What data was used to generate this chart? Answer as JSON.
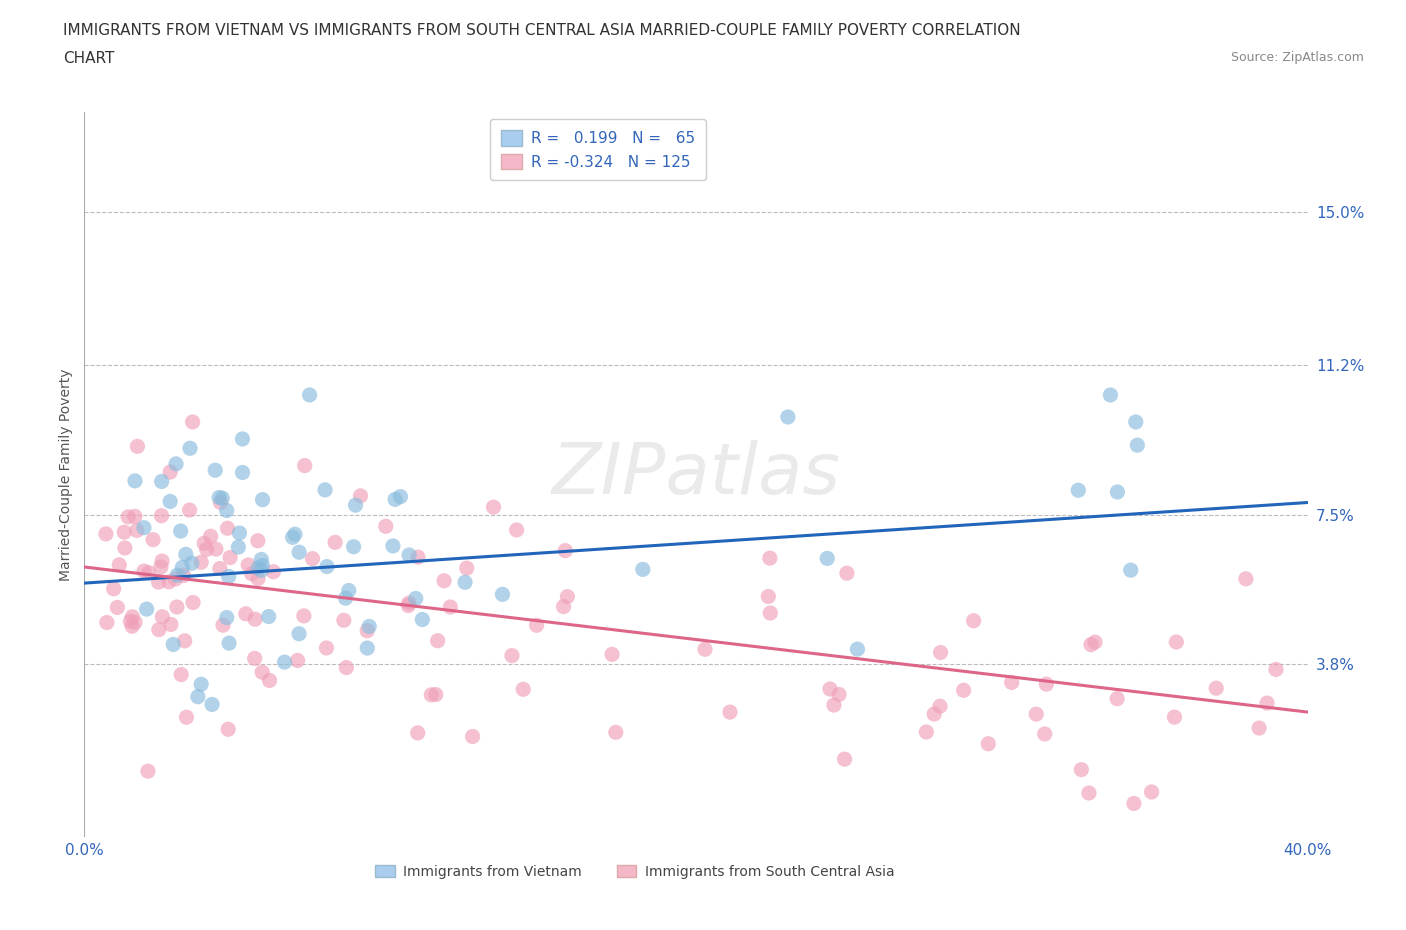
{
  "title_line1": "IMMIGRANTS FROM VIETNAM VS IMMIGRANTS FROM SOUTH CENTRAL ASIA MARRIED-COUPLE FAMILY POVERTY CORRELATION",
  "title_line2": "CHART",
  "source_text": "Source: ZipAtlas.com",
  "ylabel": "Married-Couple Family Poverty",
  "xlim": [
    0.0,
    0.4
  ],
  "ylim": [
    -0.005,
    0.175
  ],
  "ytick_values": [
    0.038,
    0.075,
    0.112,
    0.15
  ],
  "ytick_labels": [
    "3.8%",
    "7.5%",
    "11.2%",
    "15.0%"
  ],
  "xtick_values": [
    0.0,
    0.4
  ],
  "xtick_labels": [
    "0.0%",
    "40.0%"
  ],
  "grid_color": "#bbbbbb",
  "background_color": "#ffffff",
  "blue_series_name": "Immigrants from Vietnam",
  "pink_series_name": "Immigrants from South Central Asia",
  "blue_color": "#88bbdd",
  "pink_color": "#f0a0b8",
  "blue_line_color": "#2266bb",
  "pink_line_color": "#dd6688",
  "blue_R": 0.199,
  "blue_N": 65,
  "pink_R": -0.324,
  "pink_N": 125,
  "blue_slope": 0.05,
  "blue_intercept": 0.058,
  "pink_slope": -0.09,
  "pink_intercept": 0.062,
  "legend_blue_fill": "#aaccee",
  "legend_pink_fill": "#f4b8c8",
  "legend_text_color": "#3366bb",
  "tick_color": "#3366bb",
  "title_color": "#333333",
  "source_color": "#888888",
  "title_fontsize": 11.0,
  "tick_fontsize": 11,
  "ylabel_fontsize": 10,
  "legend_fontsize": 11,
  "watermark_text": "ZIPatlas",
  "watermark_color": "#dddddd",
  "blue_seed": 42,
  "pink_seed": 99
}
